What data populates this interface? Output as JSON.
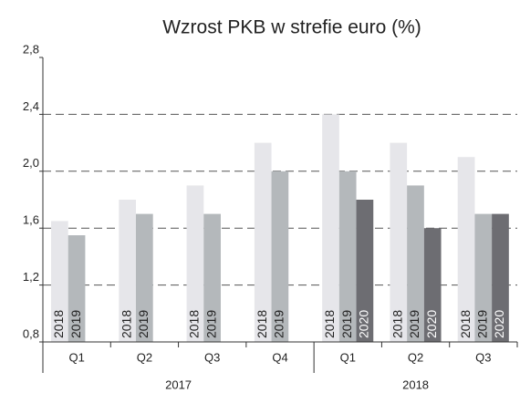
{
  "chart_data": {
    "type": "bar",
    "title": "Wzrost PKB w strefie euro (%)",
    "categories": [
      "Q1",
      "Q2",
      "Q3",
      "Q4",
      "Q1",
      "Q2",
      "Q3"
    ],
    "x_groups": [
      "2017",
      "2017",
      "2017",
      "2017",
      "2018",
      "2018",
      "2018"
    ],
    "series": [
      {
        "name": "2018",
        "color": "#e6e6ea",
        "values": [
          1.65,
          1.8,
          1.9,
          2.2,
          2.4,
          2.2,
          2.1
        ]
      },
      {
        "name": "2019",
        "color": "#b4b8bb",
        "values": [
          1.55,
          1.7,
          1.7,
          2.0,
          2.0,
          1.9,
          1.7
        ]
      },
      {
        "name": "2020",
        "color": "#6d6d72",
        "values": [
          null,
          null,
          null,
          null,
          1.8,
          1.6,
          1.7
        ]
      }
    ],
    "ylim": [
      0.8,
      2.8
    ],
    "yticks": [
      {
        "value": 0.8,
        "label": "0,8"
      },
      {
        "value": 1.2,
        "label": "1,2"
      },
      {
        "value": 1.6,
        "label": "1,6"
      },
      {
        "value": 2.0,
        "label": "2,0"
      },
      {
        "value": 2.4,
        "label": "2,4"
      },
      {
        "value": 2.8,
        "label": "2,8"
      }
    ],
    "grid": true
  }
}
